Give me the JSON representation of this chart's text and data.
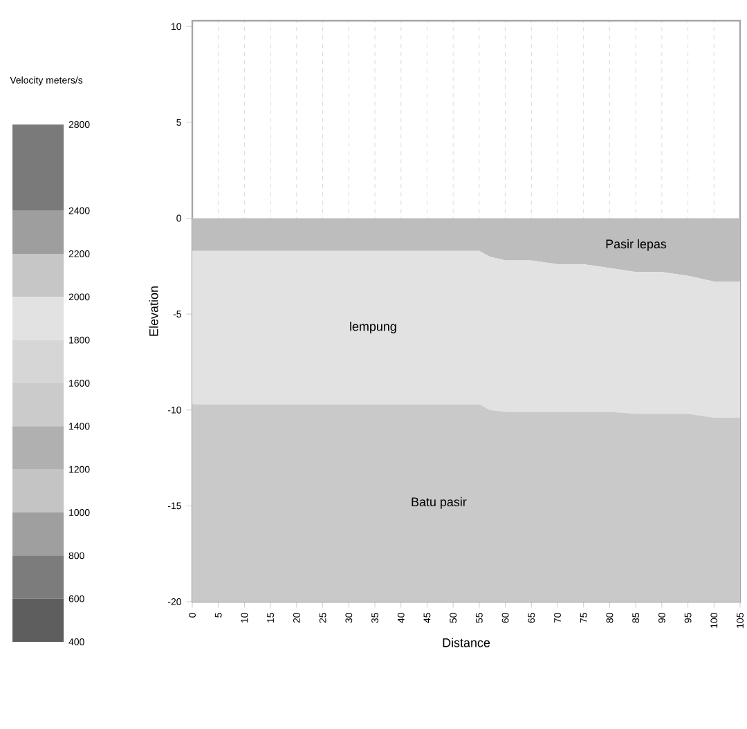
{
  "chart_data": {
    "type": "area",
    "stacked": true,
    "xlabel": "Distance",
    "ylabel": "Elevation",
    "clabel": "Velocity meters/s",
    "clim": [
      400,
      2800
    ],
    "cticks": [
      2800,
      2400,
      2200,
      2000,
      1800,
      1600,
      1400,
      1200,
      1000,
      800,
      600,
      400
    ],
    "x": [
      0,
      55,
      57,
      60,
      65,
      70,
      75,
      80,
      85,
      90,
      95,
      100,
      105
    ],
    "series": [
      {
        "name": "Pasir lepas",
        "color": "#bdbdbd",
        "values": [
          -1.7,
          -1.7,
          -2.0,
          -2.2,
          -2.2,
          -2.4,
          -2.4,
          -2.6,
          -2.8,
          -2.8,
          -3.0,
          -3.3,
          -3.3
        ]
      },
      {
        "name": "lempung",
        "color": "#e2e2e2",
        "values": [
          -8.0,
          -8.0,
          -8.0,
          -7.9,
          -7.9,
          -7.7,
          -7.7,
          -7.5,
          -7.4,
          -7.4,
          -7.2,
          -7.1,
          -7.1
        ]
      },
      {
        "name": "Batu pasir",
        "color": "#c9c9c9",
        "values": [
          -10.3,
          -10.3,
          -10.0,
          -9.9,
          -9.9,
          -9.9,
          -9.9,
          -9.9,
          -9.8,
          -9.8,
          -9.8,
          -9.6,
          -9.6
        ]
      }
    ],
    "xlim": [
      0,
      105
    ],
    "ylim": [
      -20,
      10.3
    ],
    "xticks": [
      0,
      5,
      10,
      15,
      20,
      25,
      30,
      35,
      40,
      45,
      50,
      55,
      60,
      65,
      70,
      75,
      80,
      85,
      90,
      95,
      100,
      105
    ],
    "yticks": [
      -20,
      -15,
      -10,
      -5,
      0,
      5,
      10
    ],
    "grid": "x"
  }
}
